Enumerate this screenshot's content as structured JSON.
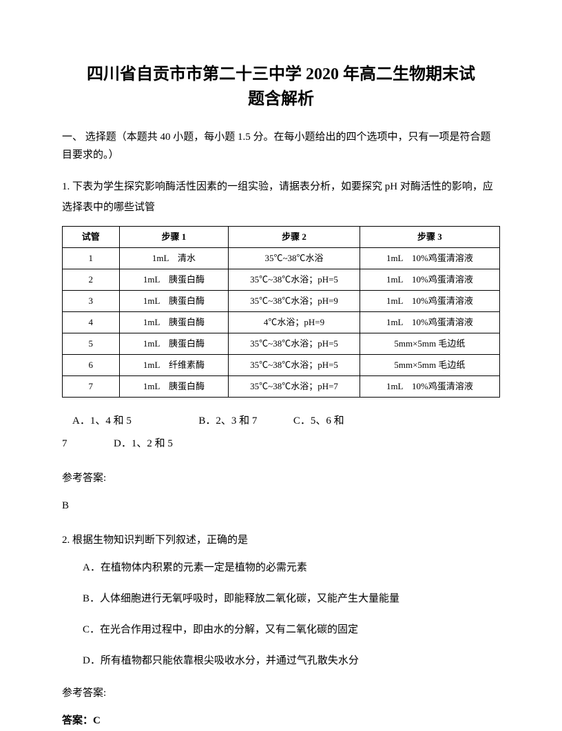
{
  "title_line1": "四川省自贡市市第二十三中学 2020 年高二生物期末试",
  "title_line2": "题含解析",
  "section_header": "一、 选择题（本题共 40 小题，每小题 1.5 分。在每小题给出的四个选项中，只有一项是符合题目要求的。）",
  "q1": {
    "text": "1. 下表为学生探究影响酶活性因素的一组实验，请据表分析，如要探究 pH 对酶活性的影响，应选择表中的哪些试管",
    "table": {
      "headers": [
        "试管",
        "步骤 1",
        "步骤 2",
        "步骤 3"
      ],
      "rows": [
        [
          "1",
          "1mL　清水",
          "35℃~38℃水浴",
          "1mL　10%鸡蛋清溶液"
        ],
        [
          "2",
          "1mL　胰蛋白酶",
          "35℃~38℃水浴；pH=5",
          "1mL　10%鸡蛋清溶液"
        ],
        [
          "3",
          "1mL　胰蛋白酶",
          "35℃~38℃水浴；pH=9",
          "1mL　10%鸡蛋清溶液"
        ],
        [
          "4",
          "1mL　胰蛋白酶",
          "4℃水浴；pH=9",
          "1mL　10%鸡蛋清溶液"
        ],
        [
          "5",
          "1mL　胰蛋白酶",
          "35℃~38℃水浴；pH=5",
          "5mm×5mm 毛边纸"
        ],
        [
          "6",
          "1mL　纤维素酶",
          "35℃~38℃水浴；pH=5",
          "5mm×5mm 毛边纸"
        ],
        [
          "7",
          "1mL　胰蛋白酶",
          "35℃~38℃水浴；pH=7",
          "1mL　10%鸡蛋清溶液"
        ]
      ]
    },
    "options": {
      "a": "A．1、4 和 5",
      "b": "B．2、3 和 7",
      "c": "C．5、6 和",
      "c_cont": "7",
      "d": "D．1、2 和 5"
    },
    "answer_label": "参考答案:",
    "answer_value": "B"
  },
  "q2": {
    "text": "2. 根据生物知识判断下列叙述，正确的是",
    "options": {
      "a": "A．在植物体内积累的元素一定是植物的必需元素",
      "b": "B．人体细胞进行无氧呼吸时，即能释放二氧化碳，又能产生大量能量",
      "c": "C．在光合作用过程中，即由水的分解，又有二氧化碳的固定",
      "d": "D．所有植物都只能依靠根尖吸收水分，并通过气孔散失水分"
    },
    "answer_label": "参考答案:",
    "answer_value": "答案：C"
  }
}
